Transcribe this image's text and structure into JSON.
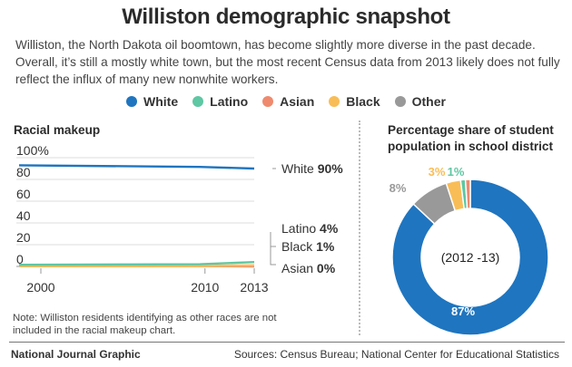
{
  "title": "Williston demographic snapshot",
  "intro": "Williston, the North Dakota oil boomtown, has become slightly more diverse in the past decade. Overall, it’s still a mostly white town, but the most recent Census data from 2013 likely does not fully reflect the influx of many new nonwhite workers.",
  "legend": [
    {
      "name": "White",
      "color": "#1f75bf"
    },
    {
      "name": "Latino",
      "color": "#5ec7a3"
    },
    {
      "name": "Asian",
      "color": "#f08a6e"
    },
    {
      "name": "Black",
      "color": "#f9bd57"
    },
    {
      "name": "Other",
      "color": "#999999"
    }
  ],
  "left_panel_title": "Racial makeup",
  "right_panel_title_line1": "Percentage share of student",
  "right_panel_title_line2": "population in school district",
  "note": "Note: Williston residents identifying as other races are not included in the racial makeup chart.",
  "credit": "National Journal Graphic",
  "sources": "Sources: Census Bureau; National Center for Educational Statistics",
  "chart_data": [
    {
      "type": "line",
      "title": "Racial makeup",
      "x": [
        2000,
        2010,
        2013
      ],
      "x_tick_labels": [
        "2000",
        "2010",
        "2013"
      ],
      "y_tick_labels": [
        "100%",
        "80",
        "60",
        "40",
        "20",
        "0"
      ],
      "ylim": [
        0,
        100
      ],
      "y_ticks": [
        0,
        20,
        40,
        60,
        80,
        100
      ],
      "grid": "horizontal",
      "series": [
        {
          "name": "White",
          "color": "#1f75bf",
          "values": [
            93,
            91.5,
            90
          ]
        },
        {
          "name": "Latino",
          "color": "#5ec7a3",
          "values": [
            1.5,
            2,
            4
          ]
        },
        {
          "name": "Black",
          "color": "#f9bd57",
          "values": [
            0.3,
            0.5,
            1
          ]
        },
        {
          "name": "Asian",
          "color": "#f08a6e",
          "values": [
            0.3,
            0.3,
            0
          ]
        }
      ],
      "end_labels": [
        {
          "series": "White",
          "label": "White ",
          "value": "90%"
        },
        {
          "series": "Latino",
          "label": "Latino ",
          "value": "4%"
        },
        {
          "series": "Black",
          "label": "Black ",
          "value": "1%"
        },
        {
          "series": "Asian",
          "label": "Asian ",
          "value": "0%"
        }
      ]
    },
    {
      "type": "pie",
      "title": "Percentage share of student population in school district",
      "center_label": "(2012 -13)",
      "slices": [
        {
          "name": "White",
          "value": 87,
          "label": "87%",
          "color": "#1f75bf"
        },
        {
          "name": "Other",
          "value": 8,
          "label": "8%",
          "color": "#999999"
        },
        {
          "name": "Black",
          "value": 3,
          "label": "3%",
          "color": "#f9bd57"
        },
        {
          "name": "Latino",
          "value": 1,
          "label": "1%",
          "color": "#5ec7a3"
        },
        {
          "name": "Asian",
          "value": 1,
          "label": "",
          "color": "#f08a6e"
        }
      ]
    }
  ]
}
